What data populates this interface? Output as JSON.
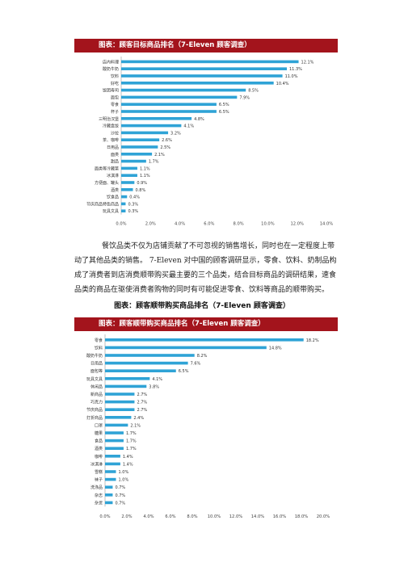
{
  "chart1": {
    "header": "图表：顾客目标商品排名（7-Eleven 顾客调查）",
    "chart_data": {
      "type": "bar",
      "orientation": "horizontal",
      "categories": [
        "店内料理",
        "酸奶牛奶",
        "饮料",
        "好吃",
        "饭团寿司",
        "面包",
        "零食",
        "杯子",
        "三明治汉堡",
        "冷藏盒饭",
        "沙拉",
        "茶、咖啡",
        "日用品",
        "面类",
        "甜品",
        "面类等冷藏菜",
        "冰淇淋",
        "方便面、罐头",
        "酒类",
        "饮食品",
        "节庆商品特色商品",
        "玩具文具"
      ],
      "values": [
        12.1,
        11.3,
        11.0,
        10.4,
        8.5,
        7.9,
        6.5,
        6.5,
        4.8,
        4.1,
        3.2,
        2.6,
        2.5,
        2.1,
        1.7,
        1.1,
        1.1,
        0.9,
        0.8,
        0.4,
        0.3,
        0.3
      ],
      "value_labels": [
        "12.1%",
        "11.3%",
        "11.0%",
        "10.4%",
        "8.5%",
        "7.9%",
        "6.5%",
        "6.5%",
        "4.8%",
        "4.1%",
        "3.2%",
        "2.6%",
        "2.5%",
        "2.1%",
        "1.7%",
        "1.1%",
        "1.1%",
        "0.9%",
        "0.8%",
        "0.4%",
        "0.3%",
        "0.3%"
      ],
      "xticks": [
        "0.0%",
        "2.0%",
        "4.0%",
        "6.0%",
        "8.0%",
        "10.0%",
        "12.0%",
        "14.0%"
      ],
      "xlim": [
        0,
        14
      ],
      "bar_color": "#2fa3d6"
    }
  },
  "paragraph": "餐饮品类不仅为店铺贡献了不可忽视的销售增长，同时也在一定程度上带动了其他品类的销售。 7-Eleven 对中国的顾客调研显示，零食、饮料、奶制品构成了消费者到店消费顺带购买最主要的三个品类，结合目标商品的调研结果，速食品类的商品在驱使消费者购物的同时有可能促进零食、饮料等商品的顺带购买。",
  "caption": "图表：顾客顺带购买商品排名（7-Eleven 顾客调查）",
  "chart2": {
    "header": "图表：顾客顺带购买商品排名（7-Eleven 顾客调查）",
    "chart_data": {
      "type": "bar",
      "orientation": "horizontal",
      "categories": [
        "零食",
        "饮料",
        "酸奶牛奶",
        "日用品",
        "面包等",
        "玩具文具",
        "休闲品",
        "新商品",
        "巧克力",
        "节庆商品",
        "打折商品",
        "口罩",
        "糖果",
        "食品",
        "酒类",
        "咖啡",
        "冰淇淋",
        "雪糕",
        "袜子",
        "洗涤品",
        "杂志",
        "杂货"
      ],
      "values": [
        18.2,
        14.8,
        8.2,
        7.6,
        6.5,
        4.1,
        3.8,
        2.7,
        2.7,
        2.7,
        2.4,
        2.1,
        1.7,
        1.7,
        1.7,
        1.4,
        1.4,
        1.0,
        1.0,
        0.7,
        0.7,
        0.7
      ],
      "value_labels": [
        "18.2%",
        "14.8%",
        "8.2%",
        "7.6%",
        "6.5%",
        "4.1%",
        "3.8%",
        "2.7%",
        "2.7%",
        "2.7%",
        "2.4%",
        "2.1%",
        "1.7%",
        "1.7%",
        "1.7%",
        "1.4%",
        "1.4%",
        "1.0%",
        "1.0%",
        "0.7%",
        "0.7%",
        "0.7%"
      ],
      "xticks": [
        "0.0%",
        "2.0%",
        "4.0%",
        "6.0%",
        "8.0%",
        "10.0%",
        "12.0%",
        "14.0%",
        "16.0%",
        "18.0%",
        "20.0%"
      ],
      "xlim": [
        0,
        20
      ],
      "bar_color": "#2fa3d6"
    }
  }
}
